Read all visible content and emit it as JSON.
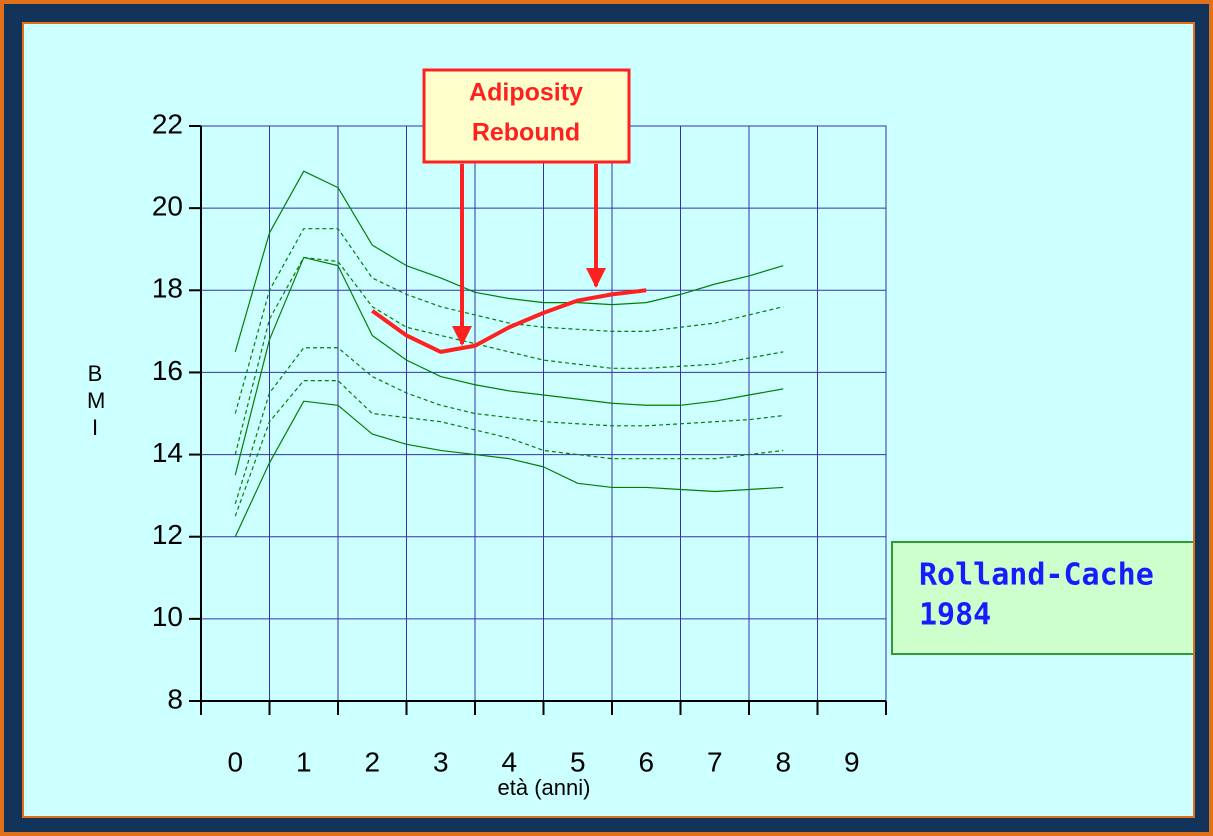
{
  "chart_data": {
    "type": "line",
    "xlabel": "età (anni)",
    "ylabel": "BMI",
    "x": [
      0,
      0.5,
      1,
      1.5,
      2,
      2.5,
      3,
      3.5,
      4,
      4.5,
      5,
      5.5,
      6,
      6.5,
      7,
      7.5,
      8
    ],
    "xlim": [
      -0.5,
      9.5
    ],
    "xticks": [
      0,
      1,
      2,
      3,
      4,
      5,
      6,
      7,
      8,
      9
    ],
    "ylim": [
      8,
      22
    ],
    "yticks": [
      8,
      10,
      12,
      14,
      16,
      18,
      20,
      22
    ],
    "grid": true,
    "series": [
      {
        "color": "#008000",
        "dash": false,
        "values": [
          16.5,
          19.4,
          20.9,
          20.5,
          19.1,
          18.6,
          18.3,
          17.95,
          17.8,
          17.7,
          17.7,
          17.65,
          17.7,
          17.9,
          18.15,
          18.35,
          18.6
        ]
      },
      {
        "color": "#008000",
        "dash": true,
        "values": [
          15.0,
          18.0,
          19.5,
          19.5,
          18.3,
          17.9,
          17.6,
          17.4,
          17.2,
          17.1,
          17.05,
          17.0,
          17.0,
          17.1,
          17.2,
          17.4,
          17.6
        ]
      },
      {
        "color": "#008000",
        "dash": true,
        "values": [
          14.0,
          17.3,
          18.8,
          18.7,
          17.6,
          17.1,
          16.9,
          16.7,
          16.5,
          16.3,
          16.2,
          16.1,
          16.1,
          16.15,
          16.2,
          16.35,
          16.5
        ]
      },
      {
        "color": "#008000",
        "dash": false,
        "values": [
          13.5,
          16.8,
          18.8,
          18.6,
          16.9,
          16.3,
          15.9,
          15.7,
          15.55,
          15.45,
          15.35,
          15.25,
          15.2,
          15.2,
          15.3,
          15.45,
          15.6
        ]
      },
      {
        "color": "#008000",
        "dash": true,
        "values": [
          12.8,
          15.5,
          16.6,
          16.6,
          15.9,
          15.5,
          15.2,
          15.0,
          14.9,
          14.8,
          14.75,
          14.7,
          14.7,
          14.75,
          14.8,
          14.85,
          14.95
        ]
      },
      {
        "color": "#008000",
        "dash": true,
        "values": [
          12.5,
          14.8,
          15.8,
          15.8,
          15.0,
          14.9,
          14.8,
          14.6,
          14.4,
          14.1,
          14.0,
          13.9,
          13.9,
          13.9,
          13.9,
          14.0,
          14.1
        ]
      },
      {
        "color": "#008000",
        "dash": false,
        "values": [
          12.0,
          13.8,
          15.3,
          15.2,
          14.5,
          14.25,
          14.1,
          14.0,
          13.9,
          13.7,
          13.3,
          13.2,
          13.2,
          13.15,
          13.1,
          13.15,
          13.2
        ]
      },
      {
        "color": "#ff2020",
        "dash": false,
        "bold": true,
        "x": [
          2,
          2.5,
          3,
          3.5,
          4,
          4.5,
          5,
          5.5,
          6
        ],
        "values": [
          17.5,
          16.9,
          16.5,
          16.65,
          17.1,
          17.45,
          17.75,
          17.9,
          18.0
        ]
      }
    ],
    "annotations": [
      {
        "lines": [
          "Adiposity",
          "Rebound"
        ]
      },
      {
        "lines": [
          "Rolland-Cache",
          "1984"
        ]
      }
    ]
  }
}
